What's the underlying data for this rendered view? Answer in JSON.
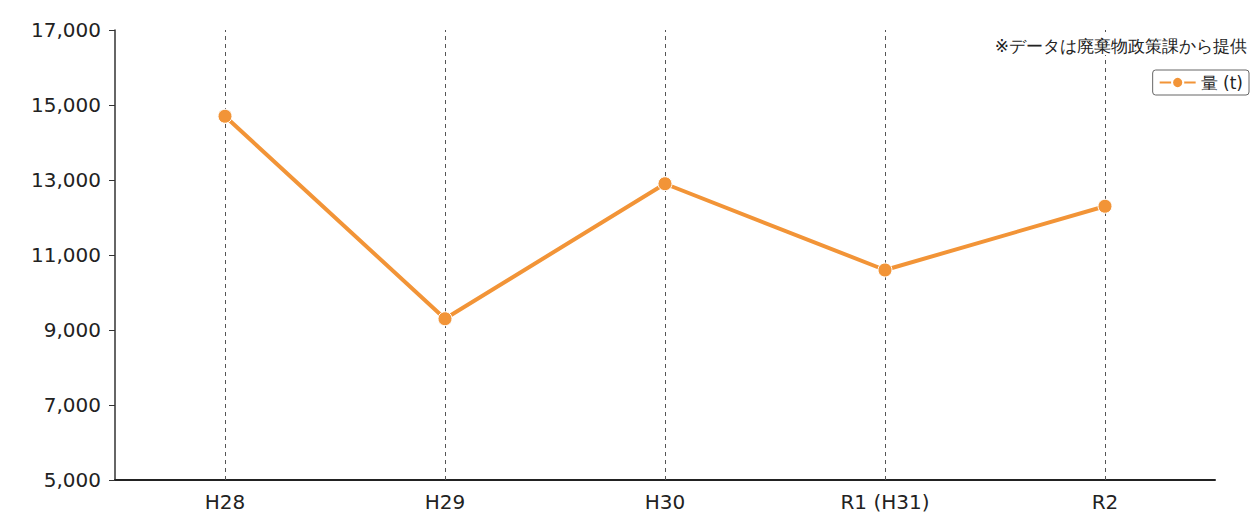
{
  "chart_data": {
    "type": "line",
    "annotations": [
      "※データは廃棄物政策課から提供"
    ],
    "categories": [
      "H28",
      "H29",
      "H30",
      "R1 (H31)",
      "R2"
    ],
    "series": [
      {
        "name": "量 (t)",
        "color": "#f29437",
        "marker": "circle",
        "values": [
          14700,
          9300,
          12900,
          10600,
          12300
        ]
      }
    ],
    "ylim": [
      5000,
      17000
    ],
    "yticks": [
      {
        "value": 5000,
        "label": "5,000"
      },
      {
        "value": 7000,
        "label": "7,000"
      },
      {
        "value": 9000,
        "label": "9,000"
      },
      {
        "value": 11000,
        "label": "11,000"
      },
      {
        "value": 13000,
        "label": "13,000"
      },
      {
        "value": 15000,
        "label": "15,000"
      },
      {
        "value": 17000,
        "label": "17,000"
      }
    ],
    "grid": true,
    "legend": "top-right"
  }
}
